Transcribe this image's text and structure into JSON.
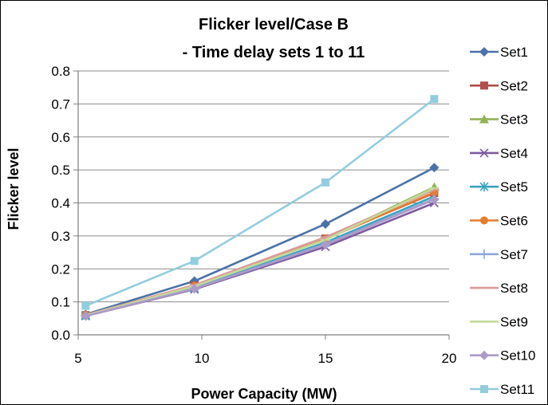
{
  "chart_data": {
    "type": "line",
    "title": "Flicker level/Case B",
    "subtitle": "- Time delay sets 1 to 11",
    "xlabel": "Power Capacity (MW)",
    "ylabel": "Flicker level",
    "xlim": [
      5,
      20
    ],
    "ylim": [
      0,
      0.8
    ],
    "xticks": [
      "5",
      "10",
      "15",
      "20"
    ],
    "yticks": [
      "0.0",
      "0.1",
      "0.2",
      "0.3",
      "0.4",
      "0.5",
      "0.6",
      "0.7",
      "0.8"
    ],
    "grid": {
      "major_y": true,
      "major_x": false
    },
    "legend_position": "right",
    "x": [
      5.3,
      9.7,
      15.0,
      19.4
    ],
    "series": [
      {
        "name": "Set1",
        "marker": "diamond",
        "color": "#4A72A6",
        "values": [
          0.062,
          0.163,
          0.336,
          0.507
        ]
      },
      {
        "name": "Set2",
        "marker": "square",
        "color": "#B04F4B",
        "values": [
          0.06,
          0.15,
          0.292,
          0.43
        ]
      },
      {
        "name": "Set3",
        "marker": "triangle",
        "color": "#92B257",
        "values": [
          0.059,
          0.148,
          0.29,
          0.448
        ]
      },
      {
        "name": "Set4",
        "marker": "x",
        "color": "#7E5B9E",
        "values": [
          0.057,
          0.138,
          0.267,
          0.4
        ]
      },
      {
        "name": "Set5",
        "marker": "star",
        "color": "#3CA3BE",
        "values": [
          0.058,
          0.142,
          0.28,
          0.42
        ]
      },
      {
        "name": "Set6",
        "marker": "circle",
        "color": "#E47C2F",
        "values": [
          0.06,
          0.149,
          0.29,
          0.432
        ]
      },
      {
        "name": "Set7",
        "marker": "plus",
        "color": "#8FA8D8",
        "values": [
          0.058,
          0.14,
          0.275,
          0.412
        ]
      },
      {
        "name": "Set8",
        "marker": "dash",
        "color": "#DA9A99",
        "values": [
          0.06,
          0.151,
          0.296,
          0.44
        ]
      },
      {
        "name": "Set9",
        "marker": "dash",
        "color": "#C3D99A",
        "values": [
          0.059,
          0.147,
          0.288,
          0.445
        ]
      },
      {
        "name": "Set10",
        "marker": "diamond",
        "color": "#AB9BC9",
        "values": [
          0.057,
          0.14,
          0.273,
          0.41
        ]
      },
      {
        "name": "Set11",
        "marker": "square",
        "color": "#93CDDD",
        "values": [
          0.088,
          0.224,
          0.462,
          0.715
        ]
      }
    ]
  }
}
